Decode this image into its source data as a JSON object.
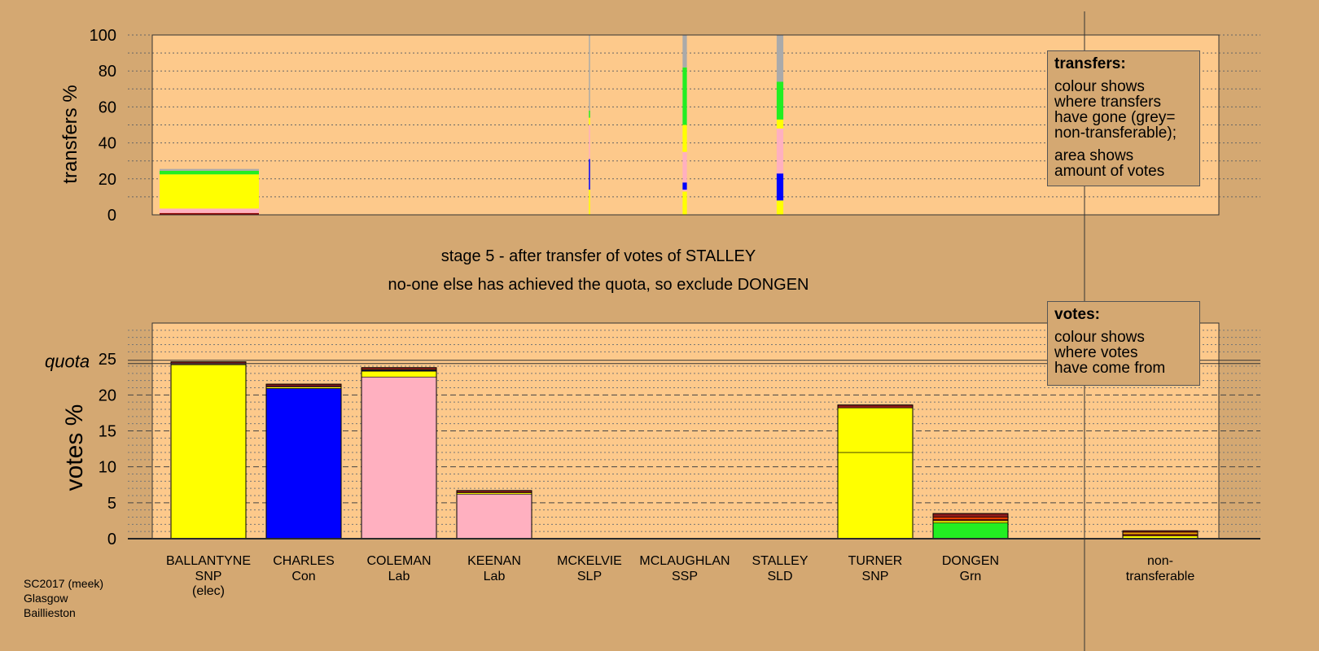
{
  "stage_heading": "stage 5 - after transfer of votes of STALLEY",
  "stage_note": "no-one else has achieved the quota, so exclude DONGEN",
  "source_label": "SC2017 (meek)\nGlasgow\nBaillieston",
  "legend_transfers": {
    "heading": "transfers:",
    "para1": "colour shows\nwhere transfers\nhave gone (grey=\nnon-transferable);",
    "para2": "area shows\namount of votes"
  },
  "legend_votes": {
    "heading": "votes:",
    "para1": "colour shows\nwhere votes\nhave come from"
  },
  "colors": {
    "background": "#d4a872",
    "plot_area": "#fdc98b",
    "SNP": "#ffff00",
    "Con": "#0000ff",
    "Lab": "#ffb0c0",
    "Grn": "#22ee22",
    "SLP": "#8b0000",
    "SSP": "#ff4500",
    "SLD": "#ffa500",
    "non_transferable": "#aaaaaa",
    "other_transfer": "#8b1a1a"
  },
  "chart_data": [
    {
      "type": "bar",
      "ylabel": "transfers %",
      "ylim": [
        0,
        100
      ],
      "yticks": [
        0,
        20,
        40,
        60,
        80,
        100
      ],
      "grid": "dotted every 10",
      "columns": [
        {
          "candidate": "BALLANTYNE",
          "width_share": 0.12,
          "segments": [
            {
              "to": "SLP",
              "from": 0,
              "to_value": 1
            },
            {
              "to": "Lab",
              "from": 1,
              "to_value": 3.5
            },
            {
              "to": "SNP",
              "from": 3.5,
              "to_value": 22.5
            },
            {
              "to": "Grn",
              "from": 22.5,
              "to_value": 24.5
            },
            {
              "to": "non_transferable",
              "from": 24.5,
              "to_value": 25.5
            }
          ]
        },
        {
          "candidate": "MCKELVIE",
          "width_share": 0.012,
          "segments": [
            {
              "to": "SNP",
              "from": 0,
              "to_value": 14
            },
            {
              "to": "Con",
              "from": 14,
              "to_value": 31
            },
            {
              "to": "Lab",
              "from": 31,
              "to_value": 50
            },
            {
              "to": "SNP",
              "from": 50,
              "to_value": 54
            },
            {
              "to": "Grn",
              "from": 54,
              "to_value": 58
            },
            {
              "to": "non_transferable",
              "from": 58,
              "to_value": 100
            }
          ]
        },
        {
          "candidate": "MCLAUGHLAN",
          "width_share": 0.045,
          "segments": [
            {
              "to": "SNP",
              "from": 0,
              "to_value": 13
            },
            {
              "to": "Lab",
              "from": 13,
              "to_value": 14
            },
            {
              "to": "Con",
              "from": 14,
              "to_value": 18
            },
            {
              "to": "Lab",
              "from": 18,
              "to_value": 35
            },
            {
              "to": "SNP",
              "from": 35,
              "to_value": 50
            },
            {
              "to": "Grn",
              "from": 50,
              "to_value": 82
            },
            {
              "to": "non_transferable",
              "from": 82,
              "to_value": 100
            }
          ]
        },
        {
          "candidate": "STALLEY",
          "width_share": 0.07,
          "segments": [
            {
              "to": "SNP",
              "from": 0,
              "to_value": 8
            },
            {
              "to": "Con",
              "from": 8,
              "to_value": 23
            },
            {
              "to": "Lab",
              "from": 23,
              "to_value": 48
            },
            {
              "to": "SNP",
              "from": 48,
              "to_value": 53
            },
            {
              "to": "Grn",
              "from": 53,
              "to_value": 74
            },
            {
              "to": "non_transferable",
              "from": 74,
              "to_value": 100
            }
          ]
        }
      ]
    },
    {
      "type": "bar",
      "ylabel": "votes %",
      "ylim": [
        0,
        30
      ],
      "yticks": [
        0,
        5,
        10,
        15,
        20,
        25
      ],
      "quota": 24.6,
      "quota_label": "quota",
      "categories": [
        "BALLANTYNE",
        "CHARLES",
        "COLEMAN",
        "KEENAN",
        "MCKELVIE",
        "MCLAUGHLAN",
        "STALLEY",
        "TURNER",
        "DONGEN",
        "non-transferable"
      ],
      "parties": [
        "SNP",
        "Con",
        "Lab",
        "Lab",
        "SLP",
        "SSP",
        "SLD",
        "SNP",
        "Grn",
        "transferable"
      ],
      "notes": [
        "(elec)",
        "",
        "",
        "",
        "",
        "",
        "",
        "",
        "",
        ""
      ],
      "bars": [
        {
          "segments": [
            {
              "party": "SNP",
              "value": 24.2
            },
            {
              "party": "Lab",
              "value": 0.1
            },
            {
              "party": "other",
              "value": 0.3
            }
          ]
        },
        {
          "segments": [
            {
              "party": "Con",
              "value": 20.9
            },
            {
              "party": "SNP",
              "value": 0.2
            },
            {
              "party": "Lab",
              "value": 0.1
            },
            {
              "party": "other",
              "value": 0.3
            }
          ]
        },
        {
          "segments": [
            {
              "party": "Lab",
              "value": 22.5
            },
            {
              "party": "SNP",
              "value": 0.8
            },
            {
              "party": "Con",
              "value": 0.1
            },
            {
              "party": "Grn",
              "value": 0.1
            },
            {
              "party": "other",
              "value": 0.3
            }
          ]
        },
        {
          "segments": [
            {
              "party": "Lab",
              "value": 6.2
            },
            {
              "party": "SNP",
              "value": 0.2
            },
            {
              "party": "other",
              "value": 0.3
            }
          ]
        },
        {
          "segments": [
            {
              "party": "SLP",
              "value": 0
            }
          ]
        },
        {
          "segments": [
            {
              "party": "SSP",
              "value": 0
            }
          ]
        },
        {
          "segments": [
            {
              "party": "SLD",
              "value": 0
            }
          ]
        },
        {
          "segments": [
            {
              "party": "SNP",
              "value": 12.0
            },
            {
              "party": "SNP",
              "value": 6.2
            },
            {
              "party": "other",
              "value": 0.4
            }
          ]
        },
        {
          "segments": [
            {
              "party": "Grn",
              "value": 2.2
            },
            {
              "party": "SNP",
              "value": 0.3
            },
            {
              "party": "other",
              "value": 0.2
            },
            {
              "party": "SSP",
              "value": 0.3
            },
            {
              "party": "other",
              "value": 0.5
            }
          ]
        },
        {
          "segments": [
            {
              "party": "SNP",
              "value": 0.4
            },
            {
              "party": "other",
              "value": 0.2
            },
            {
              "party": "SLD",
              "value": 0.3
            },
            {
              "party": "other",
              "value": 0.2
            }
          ]
        }
      ]
    }
  ]
}
